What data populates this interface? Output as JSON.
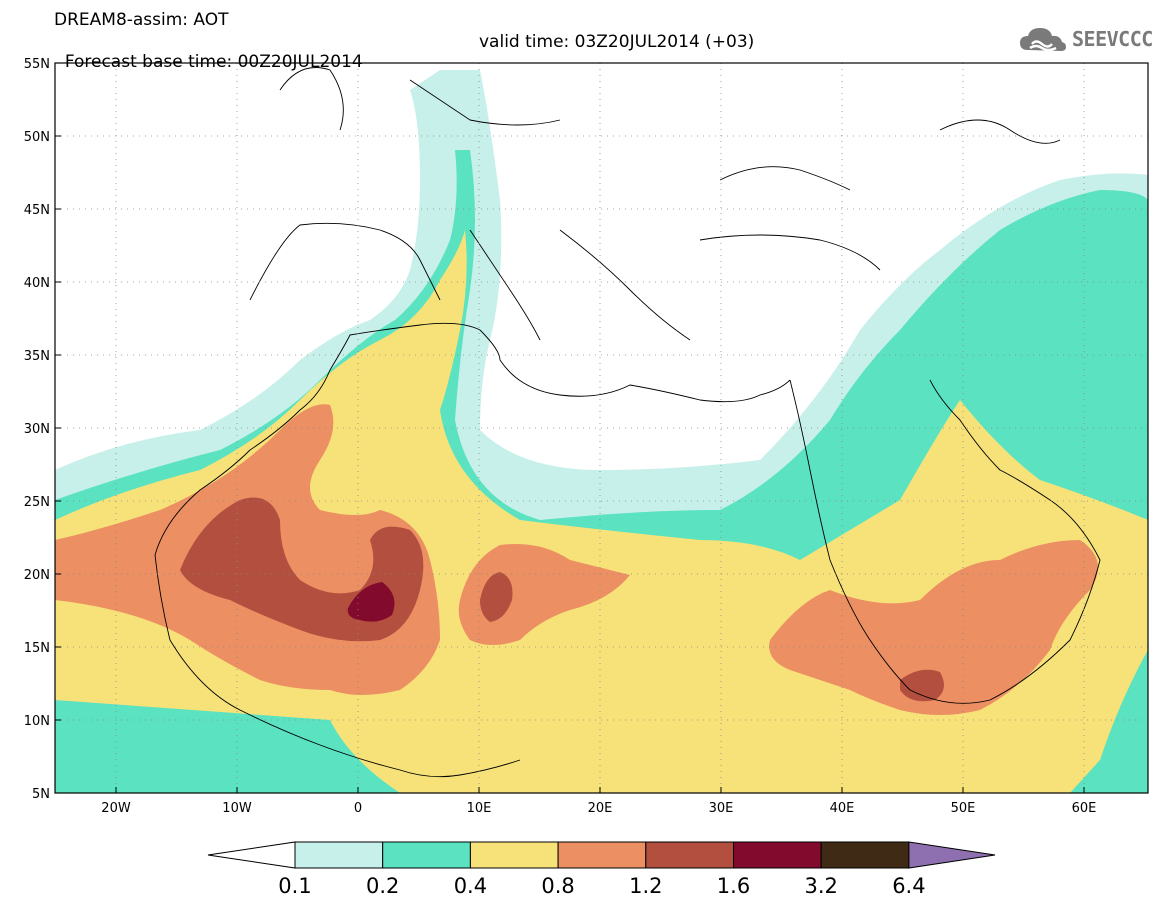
{
  "header": {
    "title": "DREAM8-assim: AOT",
    "base_time": "Forecast base time: 00Z20JUL2014",
    "valid_time": "valid time: 03Z20JUL2014 (+03)"
  },
  "logo": {
    "text": "SEEVCCC",
    "icon": "cloud-icon"
  },
  "map": {
    "lon_range": [
      -25,
      65
    ],
    "lat_range": [
      5,
      55
    ],
    "lat_ticks": [
      "55N",
      "50N",
      "45N",
      "40N",
      "35N",
      "30N",
      "25N",
      "20N",
      "15N",
      "10N",
      "5N"
    ],
    "lon_ticks": [
      "20W",
      "10W",
      "0",
      "10E",
      "20E",
      "30E",
      "40E",
      "50E",
      "60E"
    ],
    "grid": "dotted",
    "background": "#ffffff"
  },
  "colorbar": {
    "labels": [
      "0.1",
      "0.2",
      "0.4",
      "0.8",
      "1.2",
      "1.6",
      "3.2",
      "6.4"
    ],
    "colors": [
      "#ffffff",
      "#c8f0ea",
      "#5ae2c1",
      "#f7e27a",
      "#ec8f63",
      "#b24f3f",
      "#820a2c",
      "#3f2a16",
      "#8e70b0"
    ],
    "extend": "both"
  }
}
